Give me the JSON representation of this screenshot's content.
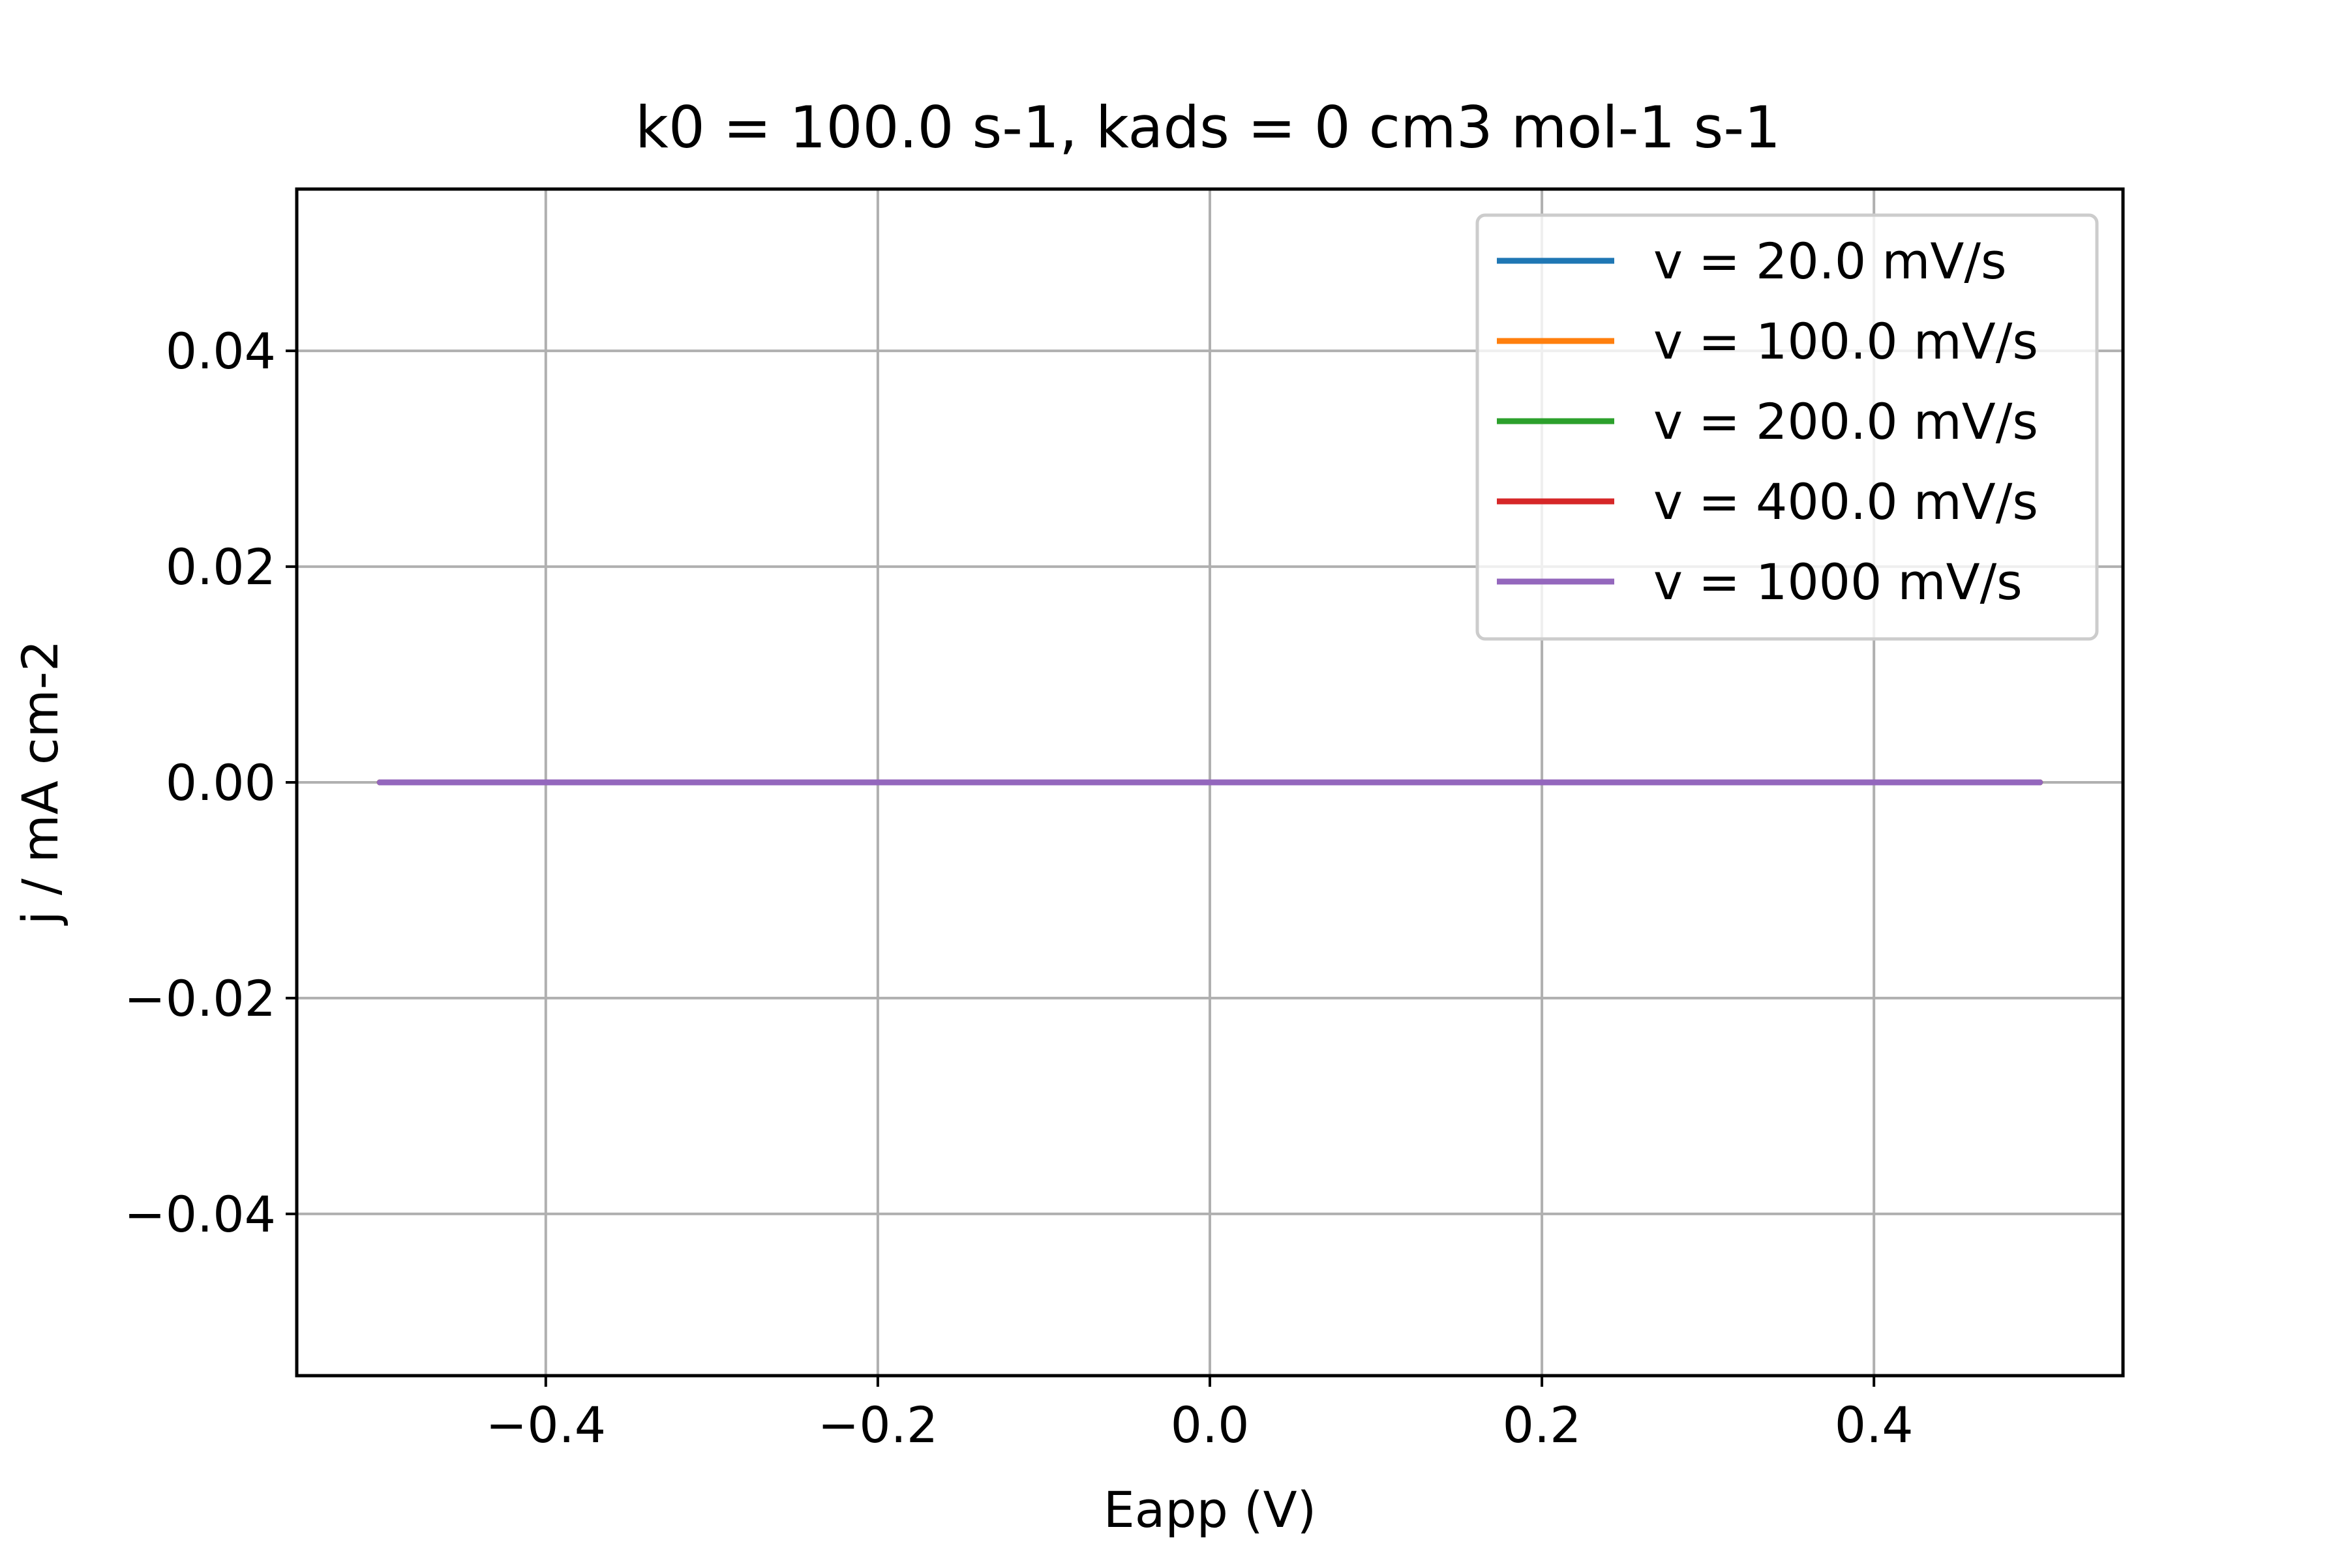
{
  "chart_data": {
    "type": "line",
    "title": "k0 = 100.0 s-1, kads = 0 cm3 mol-1 s-1",
    "xlabel": "Eapp (V)",
    "ylabel": "j / mA cm-2",
    "xlim": [
      -0.55,
      0.55
    ],
    "ylim": [
      -0.055,
      0.055
    ],
    "xticks": [
      -0.4,
      -0.2,
      0.0,
      0.2,
      0.4
    ],
    "xtick_labels": [
      "−0.4",
      "−0.2",
      "0.0",
      "0.2",
      "0.4"
    ],
    "yticks": [
      0.04,
      0.02,
      0.0,
      -0.02,
      -0.04
    ],
    "ytick_labels": [
      "0.04",
      "0.02",
      "0.00",
      "−0.02",
      "−0.04"
    ],
    "grid": true,
    "legend_position": "upper right",
    "series": [
      {
        "name": "v = 20.0 mV/s",
        "color": "#1f77b4",
        "x": [
          -0.5,
          0.5
        ],
        "y": [
          0.0,
          0.0
        ]
      },
      {
        "name": "v = 100.0 mV/s",
        "color": "#ff7f0e",
        "x": [
          -0.5,
          0.5
        ],
        "y": [
          0.0,
          0.0
        ]
      },
      {
        "name": "v = 200.0 mV/s",
        "color": "#2ca02c",
        "x": [
          -0.5,
          0.5
        ],
        "y": [
          0.0,
          0.0
        ]
      },
      {
        "name": "v = 400.0 mV/s",
        "color": "#d62728",
        "x": [
          -0.5,
          0.5
        ],
        "y": [
          0.0,
          0.0
        ]
      },
      {
        "name": "v = 1000 mV/s",
        "color": "#9467bd",
        "x": [
          -0.5,
          0.5
        ],
        "y": [
          0.0,
          0.0
        ]
      }
    ]
  }
}
